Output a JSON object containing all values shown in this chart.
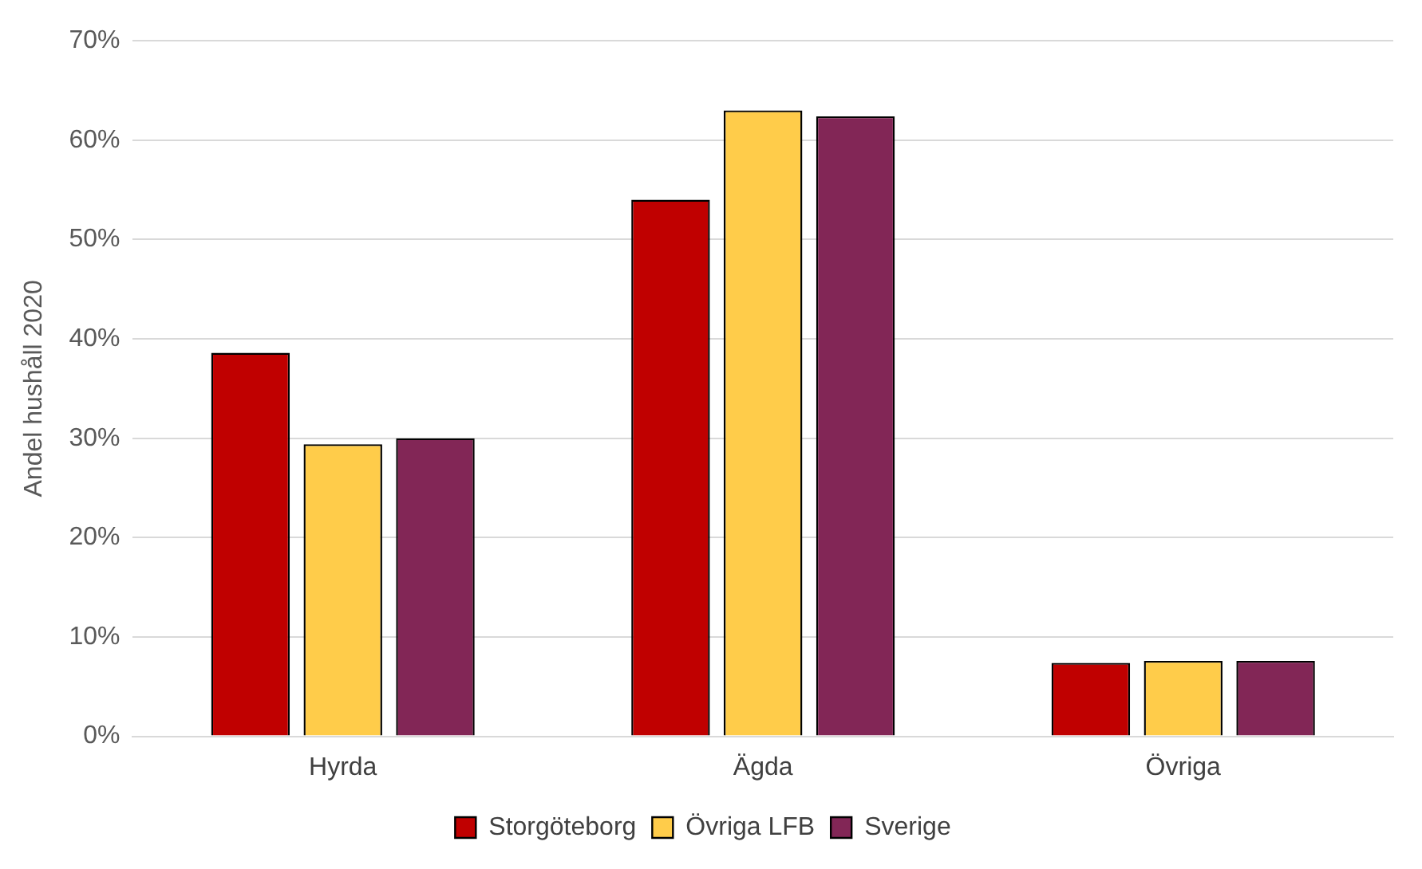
{
  "chart_data": {
    "type": "bar",
    "ylabel": "Andel hushåll 2020",
    "categories": [
      "Hyrda",
      "Ägda",
      "Övriga"
    ],
    "series": [
      {
        "name": "Storgöteborg",
        "color": "#c00000",
        "values": [
          38.6,
          54.0,
          7.4
        ]
      },
      {
        "name": "Övriga LFB",
        "color": "#ffcc4a",
        "values": [
          29.4,
          63.0,
          7.6
        ]
      },
      {
        "name": "Sverige",
        "color": "#822656",
        "values": [
          30.0,
          62.4,
          7.6
        ]
      }
    ],
    "ylim": [
      0,
      70
    ],
    "yticks": [
      {
        "value": 0,
        "label": "0%"
      },
      {
        "value": 10,
        "label": "10%"
      },
      {
        "value": 20,
        "label": "20%"
      },
      {
        "value": 30,
        "label": "30%"
      },
      {
        "value": 40,
        "label": "40%"
      },
      {
        "value": 50,
        "label": "50%"
      },
      {
        "value": 60,
        "label": "60%"
      },
      {
        "value": 70,
        "label": "70%"
      }
    ],
    "grid": "y",
    "legend": "bottom"
  }
}
